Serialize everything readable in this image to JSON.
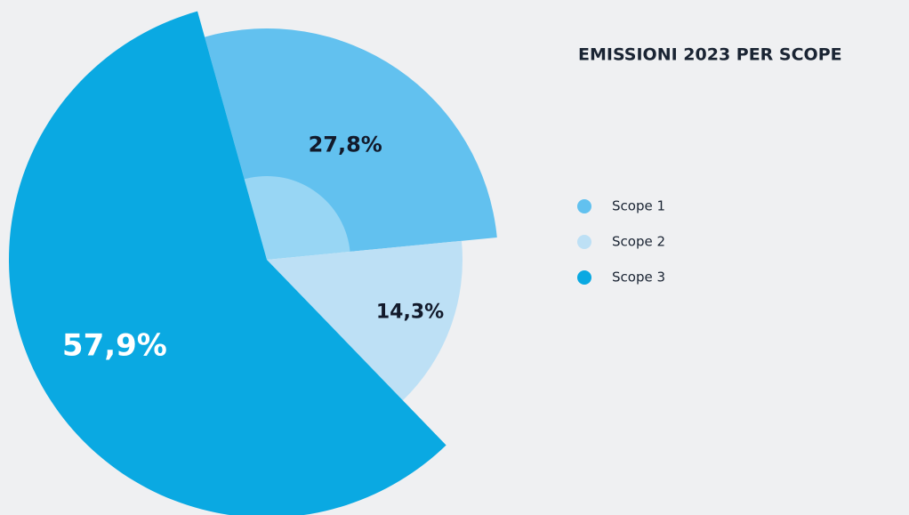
{
  "chart_data": {
    "type": "pie",
    "title": "EMISSIONI 2023 PER SCOPE",
    "categories": [
      "Scope 1",
      "Scope 2",
      "Scope 3"
    ],
    "values": [
      27.8,
      14.3,
      57.9
    ],
    "value_labels": [
      "27,8%",
      "14,3%",
      "57,9%"
    ],
    "colors": [
      "#62c1ef",
      "#bde0f5",
      "#0aa9e2"
    ],
    "legend": "right"
  }
}
